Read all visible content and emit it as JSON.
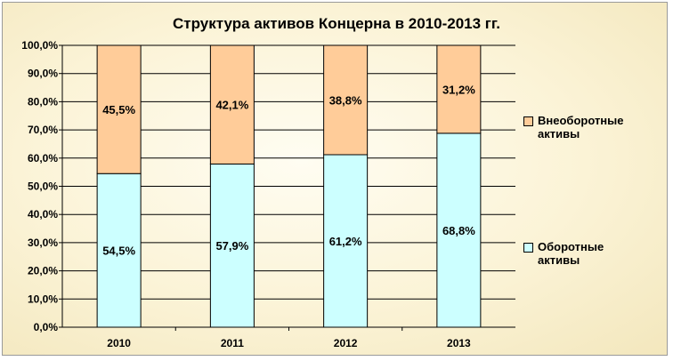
{
  "colors": {
    "background": "#fbf3d6",
    "series_current": "#ccffff",
    "series_noncurrent": "#ffcc99"
  },
  "chart_data": {
    "type": "bar",
    "stacked": true,
    "title": "Структура активов Концерна в 2010-2013 гг.",
    "categories": [
      "2010",
      "2011",
      "2012",
      "2013"
    ],
    "series": [
      {
        "name": "Оборотные активы",
        "values": [
          54.5,
          57.9,
          61.2,
          68.8
        ],
        "labels": [
          "54,5%",
          "57,9%",
          "61,2%",
          "68,8%"
        ]
      },
      {
        "name": "Внеоборотные активы",
        "values": [
          45.5,
          42.1,
          38.8,
          31.2
        ],
        "labels": [
          "45,5%",
          "42,1%",
          "38,8%",
          "31,2%"
        ]
      }
    ],
    "ylim": [
      0,
      100
    ],
    "yticks": [
      0,
      10,
      20,
      30,
      40,
      50,
      60,
      70,
      80,
      90,
      100
    ],
    "ytick_labels": [
      "0,0%",
      "10,0%",
      "20,0%",
      "30,0%",
      "40,0%",
      "50,0%",
      "60,0%",
      "70,0%",
      "80,0%",
      "90,0%",
      "100,0%"
    ],
    "grid": true,
    "legend": "right",
    "legend_entries": [
      {
        "label": "Внеоборотные активы",
        "series": 1
      },
      {
        "label": "Оборотные активы",
        "series": 0
      }
    ]
  }
}
